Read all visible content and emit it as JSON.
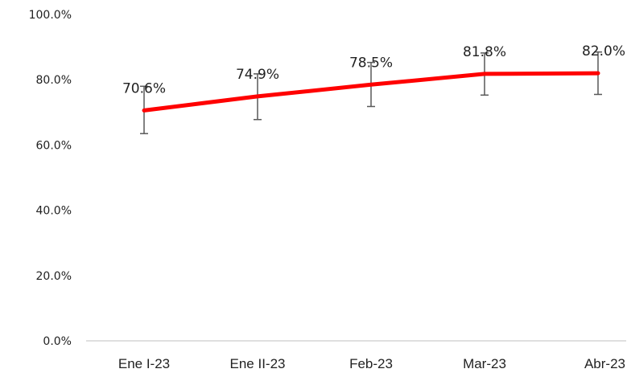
{
  "chart_data": {
    "type": "line",
    "title": "",
    "xlabel": "",
    "ylabel": "",
    "categories": [
      "Ene I-23",
      "Ene II-23",
      "Feb-23",
      "Mar-23",
      "Abr-23"
    ],
    "values": [
      70.6,
      74.9,
      78.5,
      81.8,
      82.0
    ],
    "data_labels": [
      "70.6%",
      "74.9%",
      "78.5%",
      "81.8%",
      "82.0%"
    ],
    "error_bars": [
      {
        "low": 63.5,
        "high": 78.0
      },
      {
        "low": 67.8,
        "high": 81.8
      },
      {
        "low": 71.8,
        "high": 85.3
      },
      {
        "low": 75.3,
        "high": 88.2
      },
      {
        "low": 75.5,
        "high": 88.5
      }
    ],
    "ylim": [
      0,
      100
    ],
    "yticks": [
      0,
      20,
      40,
      60,
      80,
      100
    ],
    "ytick_labels": [
      "0.0%",
      "20.0%",
      "40.0%",
      "60.0%",
      "80.0%",
      "100.0%"
    ],
    "grid": false,
    "legend": "none",
    "line_color": "#ff0000",
    "error_bar_color": "#595959",
    "axis_color": "#bfbfbf"
  }
}
